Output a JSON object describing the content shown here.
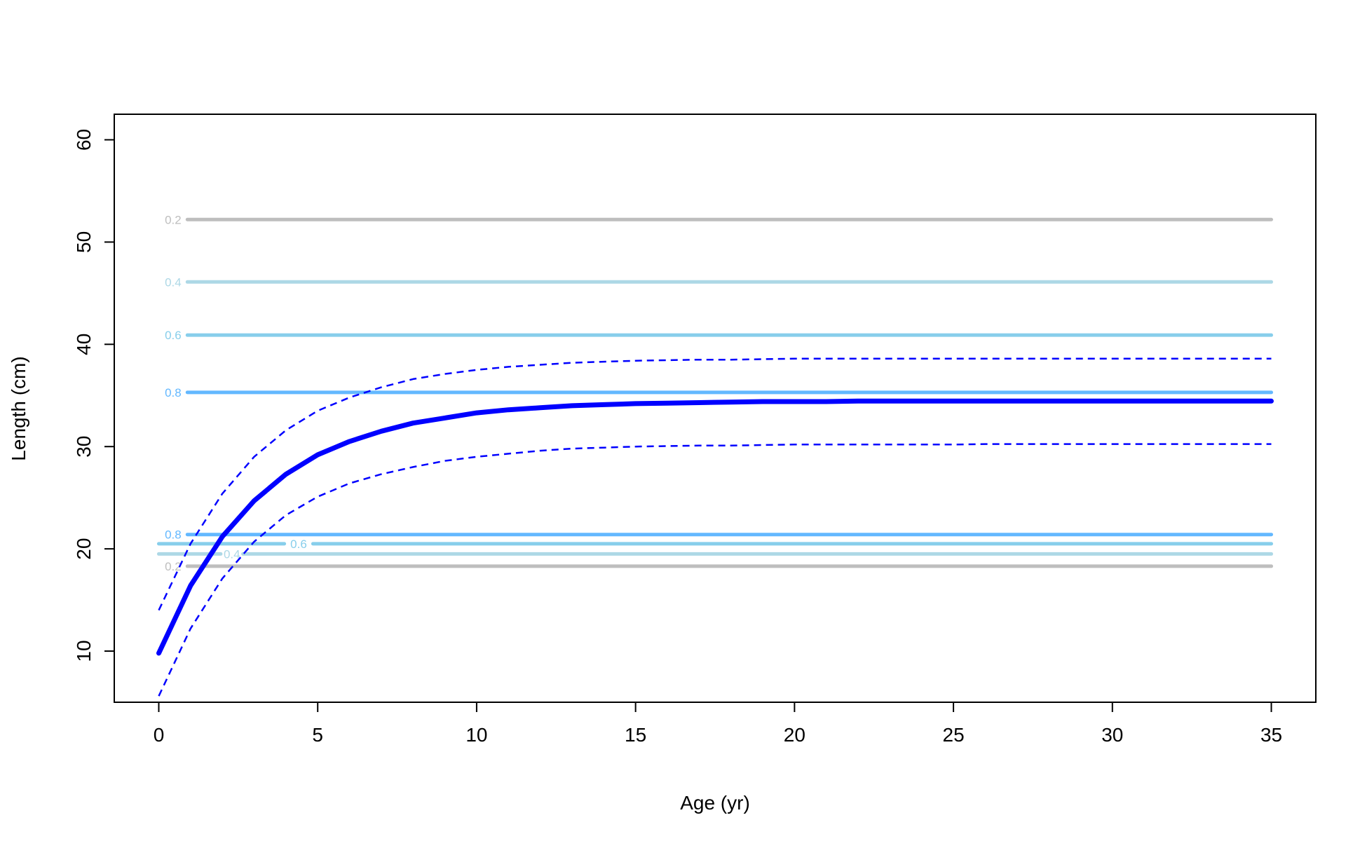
{
  "chart_data": {
    "type": "line",
    "title": "",
    "xlabel": "Age (yr)",
    "ylabel": "Length (cm)",
    "xlim": [
      -1.4,
      36.4
    ],
    "ylim": [
      5,
      62.5
    ],
    "x_ticks": [
      0,
      5,
      10,
      15,
      20,
      25,
      30,
      35
    ],
    "y_ticks": [
      10,
      20,
      30,
      40,
      50,
      60
    ],
    "grid": false,
    "legend": "none",
    "series": [
      {
        "style": "solid-thick",
        "color": "#0000ff",
        "x": [
          0,
          1,
          2,
          3,
          4,
          5,
          6,
          7,
          8,
          9,
          10,
          11,
          12,
          13,
          14,
          15,
          16,
          17,
          18,
          19,
          20,
          21,
          22,
          23,
          24,
          25,
          26,
          27,
          28,
          29,
          30,
          31,
          32,
          33,
          34,
          35
        ],
        "y": [
          9.8,
          16.4,
          21.2,
          24.7,
          27.3,
          29.2,
          30.5,
          31.5,
          32.3,
          32.8,
          33.3,
          33.6,
          33.8,
          34.0,
          34.1,
          34.2,
          34.25,
          34.3,
          34.35,
          34.4,
          34.4,
          34.4,
          34.45,
          34.45,
          34.45,
          34.45,
          34.45,
          34.45,
          34.45,
          34.45,
          34.45,
          34.45,
          34.45,
          34.45,
          34.45,
          34.45
        ]
      },
      {
        "style": "dashed",
        "color": "#0000ff",
        "x": [
          0,
          1,
          2,
          3,
          4,
          5,
          6,
          7,
          8,
          9,
          10,
          11,
          12,
          13,
          14,
          15,
          16,
          17,
          18,
          19,
          20,
          21,
          22,
          23,
          24,
          25,
          26,
          27,
          28,
          29,
          30,
          31,
          32,
          33,
          34,
          35
        ],
        "y": [
          14.0,
          20.5,
          25.4,
          29.0,
          31.6,
          33.5,
          34.8,
          35.8,
          36.6,
          37.1,
          37.5,
          37.8,
          38.0,
          38.2,
          38.3,
          38.4,
          38.45,
          38.5,
          38.5,
          38.55,
          38.6,
          38.6,
          38.6,
          38.6,
          38.6,
          38.6,
          38.6,
          38.6,
          38.6,
          38.6,
          38.6,
          38.6,
          38.6,
          38.6,
          38.6,
          38.6
        ]
      },
      {
        "style": "dashed",
        "color": "#0000ff",
        "x": [
          0,
          1,
          2,
          3,
          4,
          5,
          6,
          7,
          8,
          9,
          10,
          11,
          12,
          13,
          14,
          15,
          16,
          17,
          18,
          19,
          20,
          21,
          22,
          23,
          24,
          25,
          26,
          27,
          28,
          29,
          30,
          31,
          32,
          33,
          34,
          35
        ],
        "y": [
          5.6,
          12.2,
          17.1,
          20.7,
          23.3,
          25.1,
          26.4,
          27.3,
          28.0,
          28.6,
          29.0,
          29.3,
          29.6,
          29.8,
          29.9,
          30.0,
          30.05,
          30.1,
          30.1,
          30.15,
          30.2,
          30.2,
          30.2,
          30.2,
          30.2,
          30.2,
          30.25,
          30.25,
          30.25,
          30.25,
          30.25,
          30.25,
          30.25,
          30.25,
          30.25,
          30.25
        ]
      }
    ],
    "reference_lines": [
      {
        "label": "0.2",
        "y": 52.2,
        "color": "#bebebe",
        "x_start": 0.9,
        "x_end": 35,
        "label_x": 0.45
      },
      {
        "label": "0.4",
        "y": 46.1,
        "color": "#add8e6",
        "x_start": 0.9,
        "x_end": 35,
        "label_x": 0.45
      },
      {
        "label": "0.6",
        "y": 40.9,
        "color": "#87ceeb",
        "x_start": 0.9,
        "x_end": 35,
        "label_x": 0.45
      },
      {
        "label": "0.8",
        "y": 35.3,
        "color": "#63b8ff",
        "x_start": 0.9,
        "x_end": 35,
        "label_x": 0.45
      },
      {
        "label": "0.8",
        "y": 21.4,
        "color": "#63b8ff",
        "x_start": 0.9,
        "x_end": 35,
        "label_x": 0.45
      },
      {
        "label": "0.6",
        "y": 20.5,
        "color": "#87ceeb",
        "x_start": 0,
        "x_end": 35,
        "label_x": 4.4,
        "gap": [
          3.95,
          4.85
        ]
      },
      {
        "label": "0.4",
        "y": 19.5,
        "color": "#add8e6",
        "x_start": 0,
        "x_end": 35,
        "label_x": 2.3,
        "gap": [
          1.95,
          2.65
        ]
      },
      {
        "label": "0.2",
        "y": 18.3,
        "color": "#bebebe",
        "x_start": 0.9,
        "x_end": 35,
        "label_x": 0.45
      }
    ]
  }
}
